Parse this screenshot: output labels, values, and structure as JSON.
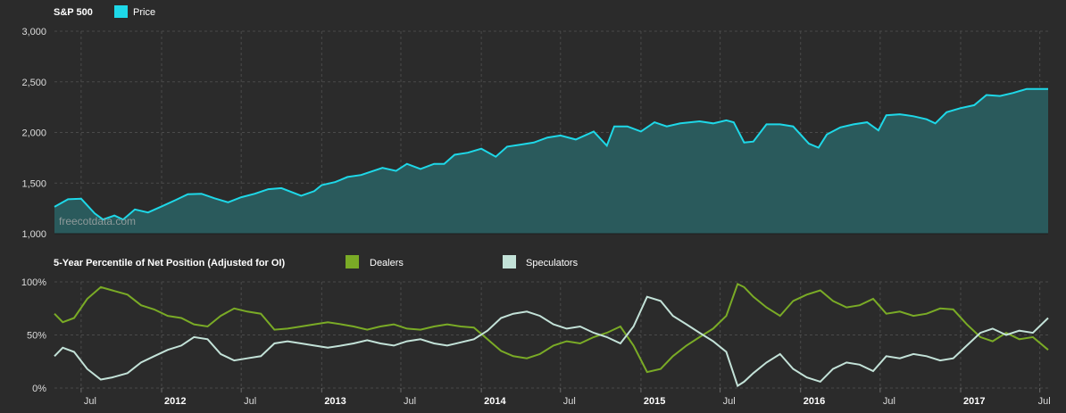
{
  "chart_data": [
    {
      "type": "area",
      "title": "S&P 500",
      "legend": [
        {
          "name": "Price",
          "color": "#1ed8e8"
        }
      ],
      "watermark": "freecotdata.com",
      "yticks": [
        "3,000",
        "2,500",
        "2,000",
        "1,500",
        "1,000"
      ],
      "ylim": [
        1000,
        3000
      ],
      "x_domain": [
        "2011-05-01",
        "2017-07-20"
      ],
      "series": [
        {
          "name": "Price",
          "color": "#1ed8e8",
          "fill": "#2a5a5c",
          "x": [
            "2011-05-01",
            "2011-06-01",
            "2011-07-01",
            "2011-08-01",
            "2011-08-20",
            "2011-09-15",
            "2011-10-05",
            "2011-11-01",
            "2011-12-01",
            "2012-01-01",
            "2012-02-01",
            "2012-03-01",
            "2012-04-01",
            "2012-05-01",
            "2012-06-01",
            "2012-07-01",
            "2012-08-01",
            "2012-09-01",
            "2012-10-01",
            "2012-11-15",
            "2012-12-15",
            "2013-01-01",
            "2013-02-01",
            "2013-03-01",
            "2013-04-01",
            "2013-05-20",
            "2013-06-20",
            "2013-07-15",
            "2013-08-15",
            "2013-09-15",
            "2013-10-08",
            "2013-11-01",
            "2013-12-01",
            "2014-01-01",
            "2014-02-03",
            "2014-03-01",
            "2014-04-01",
            "2014-05-01",
            "2014-06-01",
            "2014-07-01",
            "2014-08-05",
            "2014-09-15",
            "2014-10-15",
            "2014-11-01",
            "2014-12-01",
            "2015-01-01",
            "2015-02-01",
            "2015-03-01",
            "2015-04-01",
            "2015-05-15",
            "2015-06-15",
            "2015-07-15",
            "2015-08-01",
            "2015-08-25",
            "2015-09-15",
            "2015-10-15",
            "2015-11-15",
            "2015-12-15",
            "2016-01-01",
            "2016-01-20",
            "2016-02-11",
            "2016-03-01",
            "2016-04-01",
            "2016-05-01",
            "2016-06-01",
            "2016-06-27",
            "2016-07-15",
            "2016-08-15",
            "2016-09-15",
            "2016-10-15",
            "2016-11-04",
            "2016-11-30",
            "2016-12-31",
            "2017-02-01",
            "2017-03-01",
            "2017-04-01",
            "2017-05-01",
            "2017-06-01",
            "2017-07-20"
          ],
          "values": [
            1265,
            1340,
            1345,
            1200,
            1140,
            1180,
            1140,
            1240,
            1210,
            1270,
            1330,
            1390,
            1395,
            1350,
            1310,
            1360,
            1395,
            1440,
            1450,
            1375,
            1420,
            1480,
            1510,
            1560,
            1580,
            1650,
            1620,
            1690,
            1640,
            1690,
            1690,
            1780,
            1800,
            1840,
            1760,
            1860,
            1880,
            1900,
            1950,
            1970,
            1930,
            2010,
            1870,
            2060,
            2060,
            2010,
            2100,
            2060,
            2090,
            2110,
            2090,
            2120,
            2100,
            1900,
            1910,
            2080,
            2080,
            2060,
            1980,
            1890,
            1850,
            1980,
            2050,
            2080,
            2100,
            2020,
            2170,
            2180,
            2160,
            2130,
            2090,
            2200,
            2240,
            2270,
            2370,
            2360,
            2390,
            2430,
            2430
          ]
        }
      ]
    },
    {
      "type": "line",
      "title": "5-Year Percentile of Net Position (Adjusted for OI)",
      "legend": [
        {
          "name": "Dealers",
          "color": "#7aab26"
        },
        {
          "name": "Speculators",
          "color": "#c3e2d8"
        }
      ],
      "yticks": [
        "100%",
        "50%",
        "0%"
      ],
      "ylim": [
        0,
        100
      ],
      "xticks": [
        {
          "label": "Jul",
          "date": "2011-07-01",
          "bold": false
        },
        {
          "label": "2012",
          "date": "2012-01-01",
          "bold": true
        },
        {
          "label": "Jul",
          "date": "2012-07-01",
          "bold": false
        },
        {
          "label": "2013",
          "date": "2013-01-01",
          "bold": true
        },
        {
          "label": "Jul",
          "date": "2013-07-01",
          "bold": false
        },
        {
          "label": "2014",
          "date": "2014-01-01",
          "bold": true
        },
        {
          "label": "Jul",
          "date": "2014-07-01",
          "bold": false
        },
        {
          "label": "2015",
          "date": "2015-01-01",
          "bold": true
        },
        {
          "label": "Jul",
          "date": "2015-07-01",
          "bold": false
        },
        {
          "label": "2016",
          "date": "2016-01-01",
          "bold": true
        },
        {
          "label": "Jul",
          "date": "2016-07-01",
          "bold": false
        },
        {
          "label": "2017",
          "date": "2017-01-01",
          "bold": true
        },
        {
          "label": "Jul",
          "date": "2017-07-01",
          "bold": false
        }
      ],
      "x_domain": [
        "2011-05-01",
        "2017-07-20"
      ],
      "series": [
        {
          "name": "Dealers",
          "color": "#7aab26",
          "x": [
            "2011-05-01",
            "2011-05-20",
            "2011-06-15",
            "2011-07-15",
            "2011-08-15",
            "2011-09-10",
            "2011-10-15",
            "2011-11-15",
            "2011-12-15",
            "2012-01-15",
            "2012-02-15",
            "2012-03-15",
            "2012-04-15",
            "2012-05-15",
            "2012-06-15",
            "2012-07-15",
            "2012-08-15",
            "2012-09-15",
            "2012-10-15",
            "2012-11-15",
            "2012-12-15",
            "2013-01-15",
            "2013-02-15",
            "2013-03-15",
            "2013-04-15",
            "2013-05-15",
            "2013-06-15",
            "2013-07-15",
            "2013-08-15",
            "2013-09-15",
            "2013-10-15",
            "2013-11-15",
            "2013-12-15",
            "2014-01-15",
            "2014-02-15",
            "2014-03-15",
            "2014-04-15",
            "2014-05-15",
            "2014-06-15",
            "2014-07-15",
            "2014-08-15",
            "2014-09-15",
            "2014-10-15",
            "2014-11-15",
            "2014-12-15",
            "2015-01-15",
            "2015-02-15",
            "2015-03-15",
            "2015-04-15",
            "2015-05-15",
            "2015-06-15",
            "2015-07-15",
            "2015-08-10",
            "2015-08-25",
            "2015-09-15",
            "2015-10-15",
            "2015-11-15",
            "2015-12-15",
            "2016-01-15",
            "2016-02-15",
            "2016-03-15",
            "2016-04-15",
            "2016-05-15",
            "2016-06-15",
            "2016-07-15",
            "2016-08-15",
            "2016-09-15",
            "2016-10-15",
            "2016-11-15",
            "2016-12-15",
            "2017-01-15",
            "2017-02-15",
            "2017-03-15",
            "2017-04-15",
            "2017-05-15",
            "2017-06-15",
            "2017-07-20"
          ],
          "values": [
            70,
            62,
            66,
            84,
            95,
            92,
            88,
            78,
            74,
            68,
            66,
            60,
            58,
            68,
            75,
            72,
            70,
            55,
            56,
            58,
            60,
            62,
            60,
            58,
            55,
            58,
            60,
            56,
            55,
            58,
            60,
            58,
            57,
            46,
            35,
            30,
            28,
            32,
            40,
            44,
            42,
            48,
            52,
            58,
            40,
            15,
            18,
            30,
            40,
            48,
            56,
            68,
            98,
            95,
            86,
            76,
            68,
            82,
            88,
            92,
            82,
            76,
            78,
            84,
            70,
            72,
            68,
            70,
            75,
            74,
            60,
            48,
            44,
            52,
            46,
            48,
            36
          ]
        },
        {
          "name": "Speculators",
          "color": "#c3e2d8",
          "x": [
            "2011-05-01",
            "2011-05-20",
            "2011-06-15",
            "2011-07-15",
            "2011-08-15",
            "2011-09-10",
            "2011-10-15",
            "2011-11-15",
            "2011-12-15",
            "2012-01-15",
            "2012-02-15",
            "2012-03-15",
            "2012-04-15",
            "2012-05-15",
            "2012-06-15",
            "2012-07-15",
            "2012-08-15",
            "2012-09-15",
            "2012-10-15",
            "2012-11-15",
            "2012-12-15",
            "2013-01-15",
            "2013-02-15",
            "2013-03-15",
            "2013-04-15",
            "2013-05-15",
            "2013-06-15",
            "2013-07-15",
            "2013-08-15",
            "2013-09-15",
            "2013-10-15",
            "2013-11-15",
            "2013-12-15",
            "2014-01-15",
            "2014-02-15",
            "2014-03-15",
            "2014-04-15",
            "2014-05-15",
            "2014-06-15",
            "2014-07-15",
            "2014-08-15",
            "2014-09-15",
            "2014-10-15",
            "2014-11-15",
            "2014-12-15",
            "2015-01-15",
            "2015-02-15",
            "2015-03-15",
            "2015-04-15",
            "2015-05-15",
            "2015-06-15",
            "2015-07-15",
            "2015-08-10",
            "2015-08-25",
            "2015-09-15",
            "2015-10-15",
            "2015-11-15",
            "2015-12-15",
            "2016-01-15",
            "2016-02-15",
            "2016-03-15",
            "2016-04-15",
            "2016-05-15",
            "2016-06-15",
            "2016-07-15",
            "2016-08-15",
            "2016-09-15",
            "2016-10-15",
            "2016-11-15",
            "2016-12-15",
            "2017-01-15",
            "2017-02-15",
            "2017-03-15",
            "2017-04-15",
            "2017-05-15",
            "2017-06-15",
            "2017-07-20"
          ],
          "values": [
            30,
            38,
            34,
            18,
            8,
            10,
            14,
            24,
            30,
            36,
            40,
            48,
            46,
            32,
            26,
            28,
            30,
            42,
            44,
            42,
            40,
            38,
            40,
            42,
            45,
            42,
            40,
            44,
            46,
            42,
            40,
            43,
            46,
            54,
            66,
            70,
            72,
            68,
            60,
            56,
            58,
            52,
            48,
            42,
            58,
            86,
            82,
            68,
            60,
            52,
            44,
            34,
            2,
            6,
            14,
            24,
            32,
            18,
            10,
            6,
            18,
            24,
            22,
            16,
            30,
            28,
            32,
            30,
            26,
            28,
            40,
            52,
            56,
            50,
            54,
            52,
            66
          ]
        }
      ]
    }
  ]
}
